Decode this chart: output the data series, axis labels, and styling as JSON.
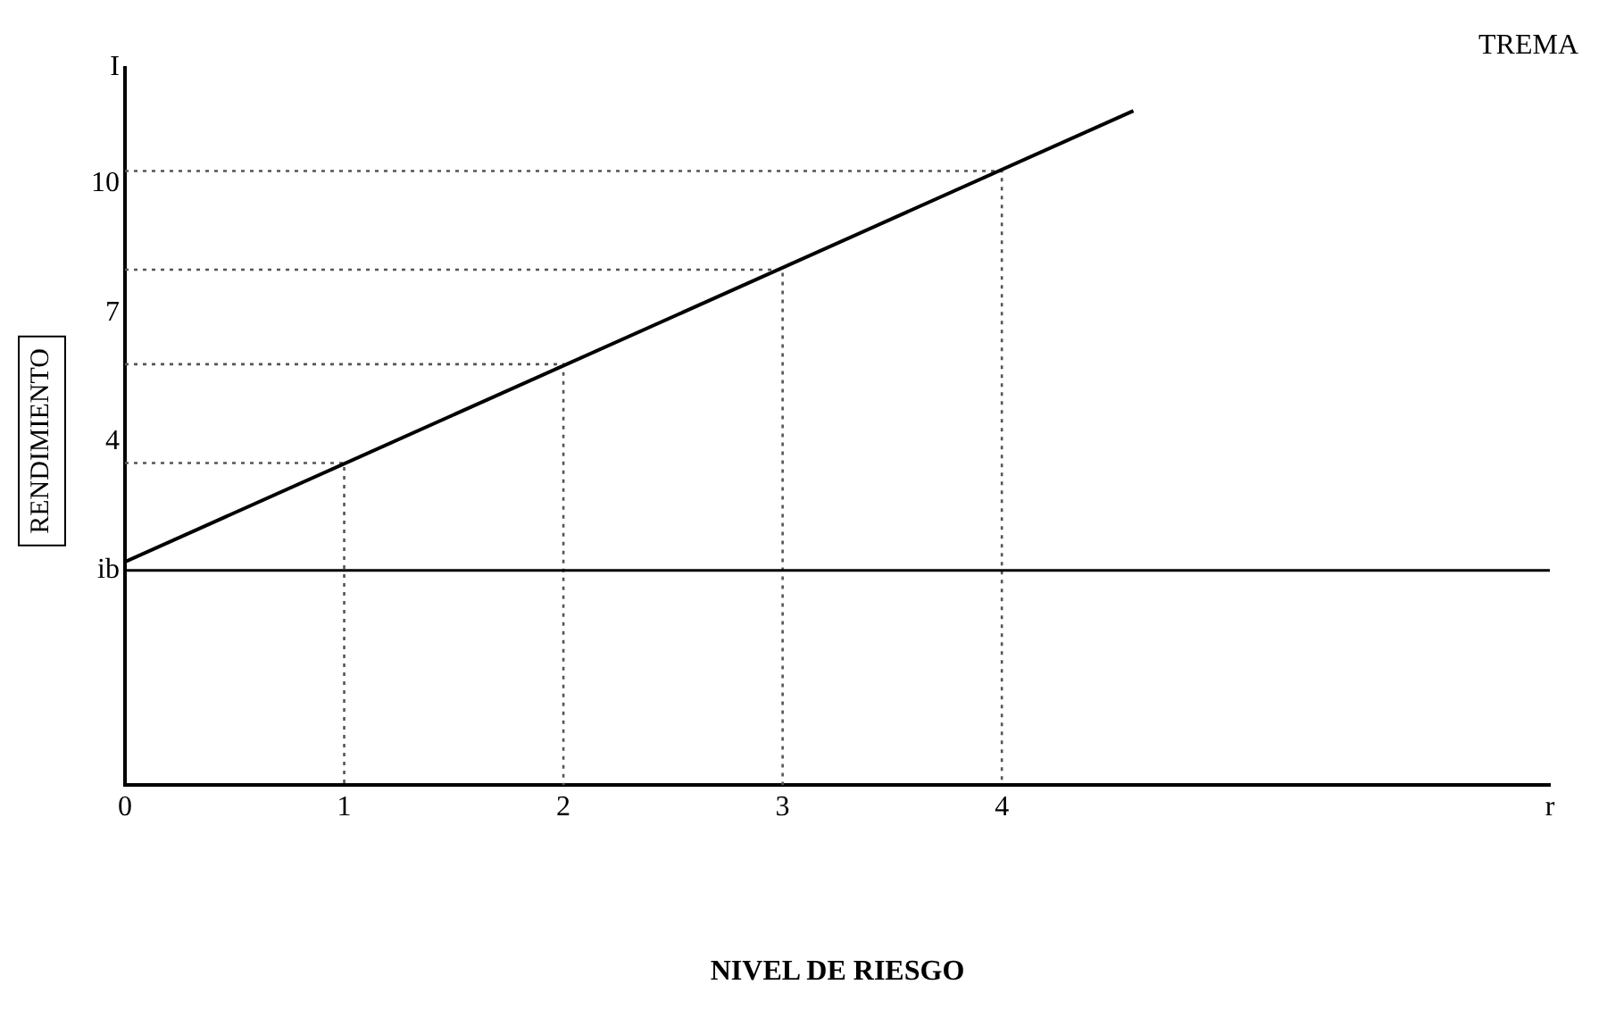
{
  "chart_data": {
    "type": "line",
    "xlabel": "NIVEL DE RIESGO",
    "ylabel": "RENDIMIENTO",
    "xlim": [
      0,
      6.5
    ],
    "xticks": [
      0,
      1,
      2,
      3,
      4,
      {
        "value": 6.5,
        "label": "r"
      }
    ],
    "ylim": [
      -4,
      12.7
    ],
    "yticks": [
      {
        "value": 1,
        "label": "ib"
      },
      4,
      7,
      10,
      {
        "value": 12.7,
        "label": "I"
      }
    ],
    "grid": false,
    "legend": false,
    "marker": "none",
    "ref_lines": [
      {
        "axis": "y",
        "value": 1,
        "color": "#000000"
      }
    ],
    "series": [
      {
        "name": "TREMA",
        "color": "#000000",
        "x": [
          0,
          4.6
        ],
        "values": [
          1.2,
          11.7
        ],
        "line_style": "solid"
      },
      {
        "color": "#555555",
        "x": [
          0,
          1,
          1
        ],
        "values": [
          3.5,
          3.5,
          -4
        ],
        "line_style": "dotted"
      },
      {
        "color": "#555555",
        "x": [
          0,
          2,
          2
        ],
        "values": [
          5.8,
          5.8,
          -4
        ],
        "line_style": "dotted"
      },
      {
        "color": "#555555",
        "x": [
          0,
          3,
          3
        ],
        "values": [
          8.0,
          8.0,
          -4
        ],
        "line_style": "dotted"
      },
      {
        "color": "#555555",
        "x": [
          0,
          4,
          4
        ],
        "values": [
          10.3,
          10.3,
          -4
        ],
        "line_style": "dotted"
      }
    ]
  }
}
